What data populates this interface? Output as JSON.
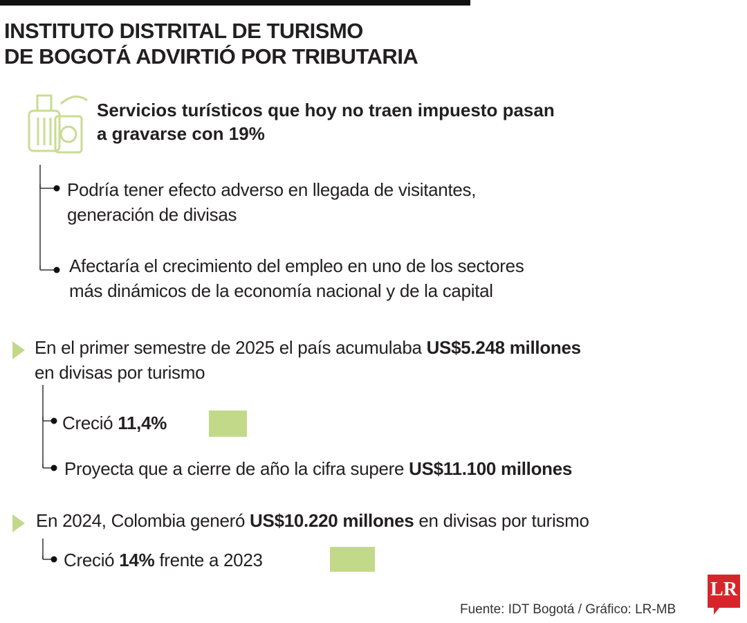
{
  "title": {
    "lines": [
      "INSTITUTO DISTRITAL DE TURISMO",
      "DE BOGOTÁ ADVIRTIÓ POR TRIBUTARIA"
    ]
  },
  "intro": {
    "lines": [
      "Servicios turísticos que hoy no traen impuesto pasan",
      "a gravarse con 19%"
    ]
  },
  "intro_points": [
    {
      "lines": [
        [
          {
            "text": "Podría tener efecto adverso en llegada de visitantes,"
          }
        ],
        [
          {
            "text": "generación de divisas"
          }
        ]
      ]
    },
    {
      "lines": [
        [
          {
            "text": "Afectaría el crecimiento del empleo en uno de los sectores"
          }
        ],
        [
          {
            "text": "más dinámicos de la economía nacional y de la capital"
          }
        ]
      ]
    }
  ],
  "facts": [
    {
      "lines": [
        [
          {
            "text": "En el primer semestre de 2025 el país acumulaba "
          },
          {
            "text": "US$5.248 millones",
            "bold": true
          }
        ],
        [
          {
            "text": "en divisas por turismo"
          }
        ]
      ],
      "points": [
        {
          "lines": [
            [
              {
                "text": "Creció "
              },
              {
                "text": "11,4%",
                "bold": true
              }
            ]
          ]
        },
        {
          "lines": [
            [
              {
                "text": "Proyecta que a cierre de año la cifra supere "
              },
              {
                "text": "US$11.100 millones",
                "bold": true
              }
            ]
          ]
        }
      ]
    },
    {
      "lines": [
        [
          {
            "text": "En 2024, Colombia generó "
          },
          {
            "text": "US$10.220 millones",
            "bold": true
          },
          {
            "text": " en divisas por turismo"
          }
        ]
      ],
      "points": [
        {
          "lines": [
            [
              {
                "text": "Creció "
              },
              {
                "text": "14%",
                "bold": true
              },
              {
                "text": " frente a 2023"
              }
            ]
          ]
        }
      ]
    }
  ],
  "source": "Fuente: IDT Bogotá / Gráfico: LR-MB",
  "logo": "LR"
}
